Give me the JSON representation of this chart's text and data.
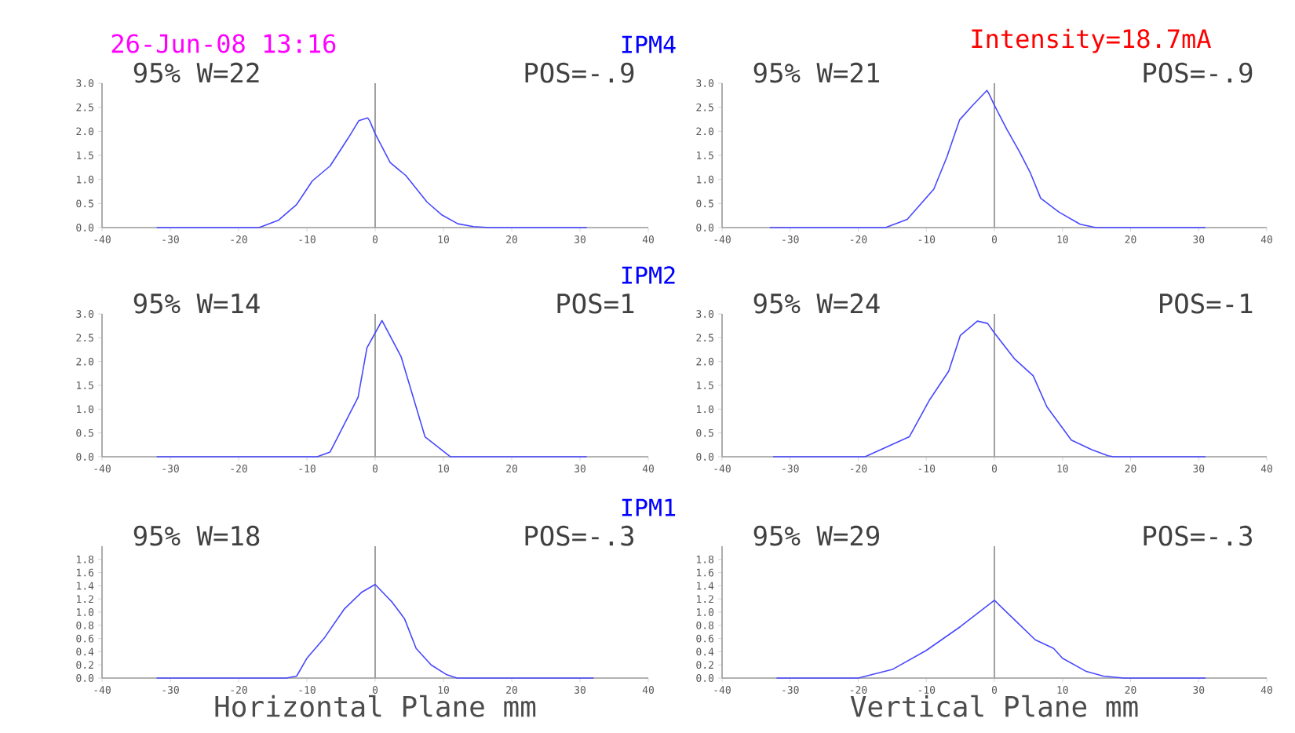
{
  "chart_data": [
    {
      "type": "line",
      "subtitle": "26-Jun-08 13:16",
      "title": "IPM4",
      "annotations": [
        "95% W=22",
        "POS=-.9"
      ],
      "marker": "none",
      "color": "#4848ff",
      "x": [
        -32,
        -17,
        -14.2,
        -11.5,
        -9.2,
        -6.6,
        -3.9,
        -2.4,
        -1.1,
        -0.8,
        0,
        2.2,
        4.5,
        7.6,
        9.8,
        12.1,
        14.4,
        16.7,
        31
      ],
      "values": [
        0,
        0,
        0.15,
        0.48,
        0.97,
        1.28,
        1.87,
        2.22,
        2.28,
        2.22,
        1.95,
        1.35,
        1.08,
        0.53,
        0.26,
        0.08,
        0.02,
        0,
        0
      ],
      "xlim": [
        -40,
        40
      ],
      "xticks": [
        -40,
        -30,
        -20,
        -10,
        0,
        10,
        20,
        30,
        40
      ],
      "ylim": [
        0,
        3
      ],
      "yticks": [
        {
          "value": 0,
          "label": "0.0"
        },
        {
          "value": 0.5,
          "label": "0.5"
        },
        {
          "value": 1,
          "label": "1.0"
        },
        {
          "value": 1.5,
          "label": "1.5"
        },
        {
          "value": 2,
          "label": "2.0"
        },
        {
          "value": 2.5,
          "label": "2.5"
        },
        {
          "value": 3,
          "label": "3.0"
        }
      ],
      "ref_lines": [
        {
          "axis": "x",
          "value": 0,
          "color": "#a0a0a0"
        }
      ]
    },
    {
      "type": "line",
      "subtitle": "Intensity=18.7mA",
      "annotations": [
        "95% W=21",
        "POS=-.9"
      ],
      "marker": "none",
      "color": "#4848ff",
      "x": [
        -33,
        -16,
        -12.8,
        -8.9,
        -7,
        -5.1,
        -3.2,
        -1.1,
        -0.8,
        0,
        1.8,
        3.7,
        5.3,
        6.8,
        9.5,
        12.6,
        14.9,
        31
      ],
      "values": [
        0,
        0,
        0.17,
        0.8,
        1.46,
        2.24,
        2.54,
        2.85,
        2.78,
        2.54,
        2.05,
        1.57,
        1.13,
        0.61,
        0.32,
        0.07,
        0,
        0
      ],
      "xlim": [
        -40,
        40
      ],
      "xticks": [
        -40,
        -30,
        -20,
        -10,
        0,
        10,
        20,
        30,
        40
      ],
      "ylim": [
        0,
        3
      ],
      "yticks": [
        {
          "value": 0,
          "label": "0.0"
        },
        {
          "value": 0.5,
          "label": "0.5"
        },
        {
          "value": 1,
          "label": "1.0"
        },
        {
          "value": 1.5,
          "label": "1.5"
        },
        {
          "value": 2,
          "label": "2.0"
        },
        {
          "value": 2.5,
          "label": "2.5"
        },
        {
          "value": 3,
          "label": "3.0"
        }
      ],
      "ref_lines": [
        {
          "axis": "x",
          "value": 0,
          "color": "#a0a0a0"
        }
      ]
    },
    {
      "type": "line",
      "title": "IPM2",
      "annotations": [
        "95% W=14",
        "POS=1"
      ],
      "marker": "none",
      "color": "#4848ff",
      "x": [
        -32,
        -8.5,
        -6.6,
        -2.5,
        -1.2,
        1,
        3.8,
        7.3,
        11,
        31
      ],
      "values": [
        0,
        0,
        0.1,
        1.25,
        2.29,
        2.86,
        2.1,
        0.42,
        0,
        0
      ],
      "xlim": [
        -40,
        40
      ],
      "xticks": [
        -40,
        -30,
        -20,
        -10,
        0,
        10,
        20,
        30,
        40
      ],
      "ylim": [
        0,
        3
      ],
      "yticks": [
        {
          "value": 0,
          "label": "0.0"
        },
        {
          "value": 0.5,
          "label": "0.5"
        },
        {
          "value": 1,
          "label": "1.0"
        },
        {
          "value": 1.5,
          "label": "1.5"
        },
        {
          "value": 2,
          "label": "2.0"
        },
        {
          "value": 2.5,
          "label": "2.5"
        },
        {
          "value": 3,
          "label": "3.0"
        }
      ],
      "ref_lines": [
        {
          "axis": "x",
          "value": 0,
          "color": "#a0a0a0"
        }
      ]
    },
    {
      "type": "line",
      "annotations": [
        "95% W=24",
        "POS=-1"
      ],
      "marker": "none",
      "color": "#4848ff",
      "x": [
        -32.5,
        -19,
        -12.5,
        -9.5,
        -6.7,
        -5,
        -2.5,
        -1,
        0,
        3,
        5.7,
        7.7,
        11.3,
        14.3,
        16.7,
        17.5,
        31
      ],
      "values": [
        0,
        0,
        0.42,
        1.2,
        1.8,
        2.55,
        2.85,
        2.8,
        2.6,
        2.05,
        1.7,
        1.05,
        0.35,
        0.15,
        0.02,
        0,
        0
      ],
      "xlim": [
        -40,
        40
      ],
      "xticks": [
        -40,
        -30,
        -20,
        -10,
        0,
        10,
        20,
        30,
        40
      ],
      "ylim": [
        0,
        3
      ],
      "yticks": [
        {
          "value": 0,
          "label": "0.0"
        },
        {
          "value": 0.5,
          "label": "0.5"
        },
        {
          "value": 1,
          "label": "1.0"
        },
        {
          "value": 1.5,
          "label": "1.5"
        },
        {
          "value": 2,
          "label": "2.0"
        },
        {
          "value": 2.5,
          "label": "2.5"
        },
        {
          "value": 3,
          "label": "3.0"
        }
      ],
      "ref_lines": [
        {
          "axis": "x",
          "value": 0,
          "color": "#a0a0a0"
        }
      ]
    },
    {
      "type": "line",
      "title": "IPM1",
      "xlabel": "Horizontal Plane mm",
      "annotations": [
        "95% W=18",
        "POS=-.3"
      ],
      "marker": "none",
      "color": "#4848ff",
      "x": [
        -32,
        -13,
        -11.5,
        -10,
        -7.5,
        -4.5,
        -2,
        0,
        2.5,
        4.3,
        6,
        8.2,
        10.5,
        12,
        32
      ],
      "values": [
        0,
        0,
        0.03,
        0.3,
        0.6,
        1.05,
        1.3,
        1.42,
        1.15,
        0.9,
        0.45,
        0.2,
        0.05,
        0,
        0
      ],
      "xlim": [
        -40,
        40
      ],
      "xticks": [
        -40,
        -30,
        -20,
        -10,
        0,
        10,
        20,
        30,
        40
      ],
      "ylim": [
        0,
        2
      ],
      "yticks": [
        {
          "value": 0,
          "label": "0.0"
        },
        {
          "value": 0.2,
          "label": "0.2"
        },
        {
          "value": 0.4,
          "label": "0.4"
        },
        {
          "value": 0.6,
          "label": "0.6"
        },
        {
          "value": 0.8,
          "label": "0.8"
        },
        {
          "value": 1,
          "label": "1.0"
        },
        {
          "value": 1.2,
          "label": "1.2"
        },
        {
          "value": 1.4,
          "label": "1.4"
        },
        {
          "value": 1.6,
          "label": "1.6"
        },
        {
          "value": 1.8,
          "label": "1.8"
        }
      ],
      "ref_lines": [
        {
          "axis": "x",
          "value": 0,
          "color": "#a0a0a0"
        }
      ]
    },
    {
      "type": "line",
      "xlabel": "Vertical Plane mm",
      "annotations": [
        "95% W=29",
        "POS=-.3"
      ],
      "marker": "none",
      "color": "#4848ff",
      "x": [
        -32,
        -20,
        -15,
        -10,
        -5,
        0,
        3,
        6,
        8.7,
        10,
        13.5,
        16,
        19,
        31
      ],
      "values": [
        0,
        0,
        0.13,
        0.42,
        0.78,
        1.18,
        0.88,
        0.58,
        0.45,
        0.3,
        0.1,
        0.03,
        0,
        0
      ],
      "xlim": [
        -40,
        40
      ],
      "xticks": [
        -40,
        -30,
        -20,
        -10,
        0,
        10,
        20,
        30,
        40
      ],
      "ylim": [
        0,
        2
      ],
      "yticks": [
        {
          "value": 0,
          "label": "0.0"
        },
        {
          "value": 0.2,
          "label": "0.2"
        },
        {
          "value": 0.4,
          "label": "0.4"
        },
        {
          "value": 0.6,
          "label": "0.6"
        },
        {
          "value": 0.8,
          "label": "0.8"
        },
        {
          "value": 1,
          "label": "1.0"
        },
        {
          "value": 1.2,
          "label": "1.2"
        },
        {
          "value": 1.4,
          "label": "1.4"
        },
        {
          "value": 1.6,
          "label": "1.6"
        },
        {
          "value": 1.8,
          "label": "1.8"
        }
      ],
      "ref_lines": [
        {
          "axis": "x",
          "value": 0,
          "color": "#a0a0a0"
        }
      ]
    }
  ]
}
